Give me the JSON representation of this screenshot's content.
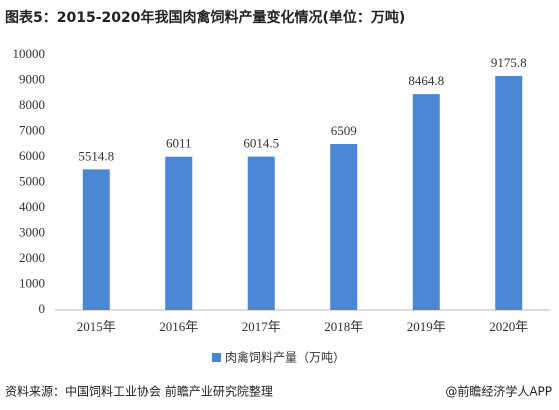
{
  "chart_data": {
    "type": "bar",
    "title": "图表5：2015-2020年我国肉禽饲料产量变化情况(单位：万吨)",
    "categories": [
      "2015年",
      "2016年",
      "2017年",
      "2018年",
      "2019年",
      "2020年"
    ],
    "series": [
      {
        "name": "肉禽饲料产量（万吨）",
        "color": "#4a86d4",
        "values": [
          5514.8,
          6011,
          6014.5,
          6509,
          8464.8,
          9175.8
        ]
      }
    ],
    "ylim": [
      0,
      10000
    ],
    "yticks": [
      0,
      1000,
      2000,
      3000,
      4000,
      5000,
      6000,
      7000,
      8000,
      9000,
      10000
    ],
    "grid": false,
    "legend": "bottom",
    "source": "资料来源：中国饲料工业协会 前瞻产业研究院整理",
    "credit": "@前瞻经济学人APP"
  }
}
